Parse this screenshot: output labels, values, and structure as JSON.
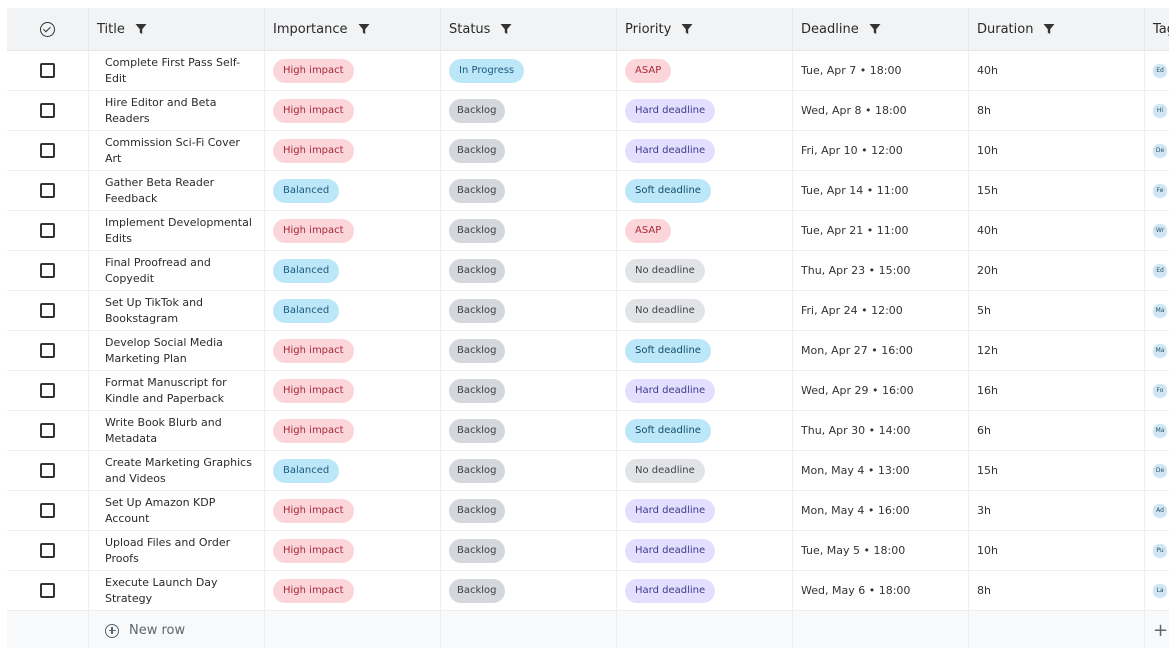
{
  "columns": {
    "title": "Title",
    "importance": "Importance",
    "status": "Status",
    "priority": "Priority",
    "deadline": "Deadline",
    "duration": "Duration",
    "tags": "Tag"
  },
  "rows": [
    {
      "title": "Complete First Pass Self-Edit",
      "importance": "High impact",
      "importance_kind": "high",
      "status": "In Progress",
      "status_kind": "prog",
      "priority": "ASAP",
      "priority_kind": "asap",
      "deadline": "Tue, Apr 7 • 18:00",
      "duration": "40h",
      "tag": "Ed"
    },
    {
      "title": "Hire Editor and Beta Readers",
      "importance": "High impact",
      "importance_kind": "high",
      "status": "Backlog",
      "status_kind": "back",
      "priority": "Hard deadline",
      "priority_kind": "hard",
      "deadline": "Wed, Apr 8 • 18:00",
      "duration": "8h",
      "tag": "Hi"
    },
    {
      "title": "Commission Sci-Fi Cover Art",
      "importance": "High impact",
      "importance_kind": "high",
      "status": "Backlog",
      "status_kind": "back",
      "priority": "Hard deadline",
      "priority_kind": "hard",
      "deadline": "Fri, Apr 10 • 12:00",
      "duration": "10h",
      "tag": "De"
    },
    {
      "title": "Gather Beta Reader Feedback",
      "importance": "Balanced",
      "importance_kind": "bal",
      "status": "Backlog",
      "status_kind": "back",
      "priority": "Soft deadline",
      "priority_kind": "soft",
      "deadline": "Tue, Apr 14 • 11:00",
      "duration": "15h",
      "tag": "Fe"
    },
    {
      "title": "Implement Developmental Edits",
      "importance": "High impact",
      "importance_kind": "high",
      "status": "Backlog",
      "status_kind": "back",
      "priority": "ASAP",
      "priority_kind": "asap",
      "deadline": "Tue, Apr 21 • 11:00",
      "duration": "40h",
      "tag": "Wr"
    },
    {
      "title": "Final Proofread and Copyedit",
      "importance": "Balanced",
      "importance_kind": "bal",
      "status": "Backlog",
      "status_kind": "back",
      "priority": "No deadline",
      "priority_kind": "none",
      "deadline": "Thu, Apr 23 • 15:00",
      "duration": "20h",
      "tag": "Ed"
    },
    {
      "title": "Set Up TikTok and Bookstagram",
      "importance": "Balanced",
      "importance_kind": "bal",
      "status": "Backlog",
      "status_kind": "back",
      "priority": "No deadline",
      "priority_kind": "none",
      "deadline": "Fri, Apr 24 • 12:00",
      "duration": "5h",
      "tag": "Ma"
    },
    {
      "title": "Develop Social Media Marketing Plan",
      "importance": "High impact",
      "importance_kind": "high",
      "status": "Backlog",
      "status_kind": "back",
      "priority": "Soft deadline",
      "priority_kind": "soft",
      "deadline": "Mon, Apr 27 • 16:00",
      "duration": "12h",
      "tag": "Ma"
    },
    {
      "title": "Format Manuscript for Kindle and Paperback",
      "importance": "High impact",
      "importance_kind": "high",
      "status": "Backlog",
      "status_kind": "back",
      "priority": "Hard deadline",
      "priority_kind": "hard",
      "deadline": "Wed, Apr 29 • 16:00",
      "duration": "16h",
      "tag": "Fo"
    },
    {
      "title": "Write Book Blurb and Metadata",
      "importance": "High impact",
      "importance_kind": "high",
      "status": "Backlog",
      "status_kind": "back",
      "priority": "Soft deadline",
      "priority_kind": "soft",
      "deadline": "Thu, Apr 30 • 14:00",
      "duration": "6h",
      "tag": "Ma"
    },
    {
      "title": "Create Marketing Graphics and Videos",
      "importance": "Balanced",
      "importance_kind": "bal",
      "status": "Backlog",
      "status_kind": "back",
      "priority": "No deadline",
      "priority_kind": "none",
      "deadline": "Mon, May 4 • 13:00",
      "duration": "15h",
      "tag": "De"
    },
    {
      "title": "Set Up Amazon KDP Account",
      "importance": "High impact",
      "importance_kind": "high",
      "status": "Backlog",
      "status_kind": "back",
      "priority": "Hard deadline",
      "priority_kind": "hard",
      "deadline": "Mon, May 4 • 16:00",
      "duration": "3h",
      "tag": "Ad"
    },
    {
      "title": "Upload Files and Order Proofs",
      "importance": "High impact",
      "importance_kind": "high",
      "status": "Backlog",
      "status_kind": "back",
      "priority": "Hard deadline",
      "priority_kind": "hard",
      "deadline": "Tue, May 5 • 18:00",
      "duration": "10h",
      "tag": "Pu"
    },
    {
      "title": "Execute Launch Day Strategy",
      "importance": "High impact",
      "importance_kind": "high",
      "status": "Backlog",
      "status_kind": "back",
      "priority": "Hard deadline",
      "priority_kind": "hard",
      "deadline": "Wed, May 6 • 18:00",
      "duration": "8h",
      "tag": "La"
    }
  ],
  "new_row_label": "New row",
  "add_column_label": "+"
}
